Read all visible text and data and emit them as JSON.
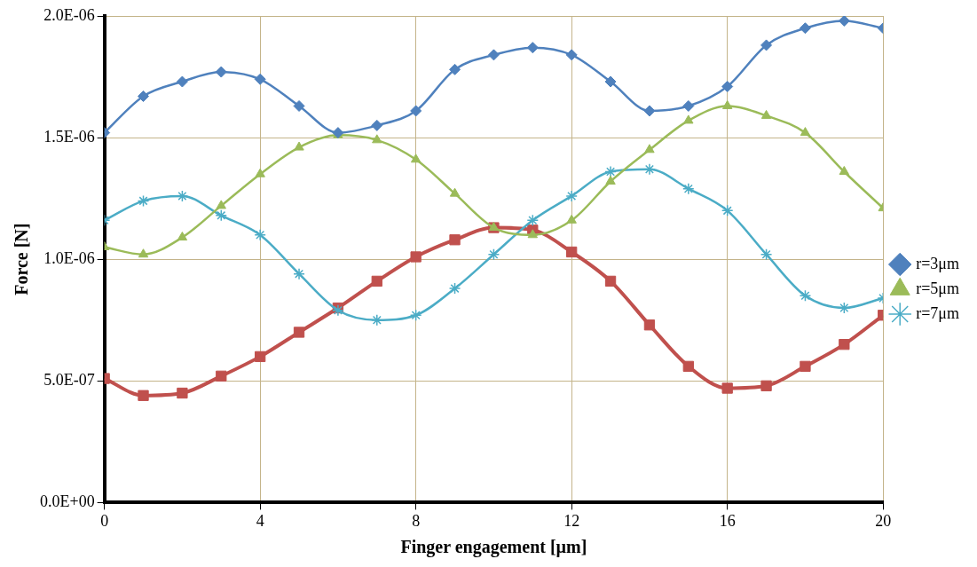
{
  "chart_data": {
    "type": "line",
    "xlabel": "Finger engagement [µm]",
    "ylabel": "Force [N]",
    "x": [
      0,
      1,
      2,
      3,
      4,
      5,
      6,
      7,
      8,
      9,
      10,
      11,
      12,
      13,
      14,
      15,
      16,
      17,
      18,
      19,
      20
    ],
    "xlim": [
      0,
      20
    ],
    "xticks": [
      0,
      4,
      8,
      12,
      16,
      20
    ],
    "ylim": [
      0,
      2e-06
    ],
    "yticks": [
      {
        "value": 0,
        "label": "0.0E+00"
      },
      {
        "value": 5e-07,
        "label": "5.0E-07"
      },
      {
        "value": 1e-06,
        "label": "1.0E-06"
      },
      {
        "value": 1.5e-06,
        "label": "1.5E-06"
      },
      {
        "value": 2e-06,
        "label": "2.0E-06"
      }
    ],
    "grid": true,
    "legend": "right",
    "series": [
      {
        "name": "r=3μm",
        "color": "#4f81bd",
        "marker": "diamond",
        "values": [
          1.52e-06,
          1.67e-06,
          1.73e-06,
          1.77e-06,
          1.74e-06,
          1.63e-06,
          1.52e-06,
          1.55e-06,
          1.61e-06,
          1.78e-06,
          1.84e-06,
          1.87e-06,
          1.84e-06,
          1.73e-06,
          1.61e-06,
          1.63e-06,
          1.71e-06,
          1.88e-06,
          1.95e-06,
          1.98e-06,
          1.95e-06
        ]
      },
      {
        "name": "r=5μm",
        "color": "#9bbb59",
        "marker": "triangle",
        "values": [
          1.05e-06,
          1.02e-06,
          1.09e-06,
          1.22e-06,
          1.35e-06,
          1.46e-06,
          1.51e-06,
          1.49e-06,
          1.41e-06,
          1.27e-06,
          1.13e-06,
          1.1e-06,
          1.16e-06,
          1.32e-06,
          1.45e-06,
          1.57e-06,
          1.63e-06,
          1.59e-06,
          1.52e-06,
          1.36e-06,
          1.21e-06
        ]
      },
      {
        "name": "r=7μm",
        "color": "#4bacc6",
        "marker": "cross",
        "values": [
          1.16e-06,
          1.24e-06,
          1.26e-06,
          1.18e-06,
          1.1e-06,
          9.4e-07,
          7.9e-07,
          7.5e-07,
          7.7e-07,
          8.8e-07,
          1.02e-06,
          1.16e-06,
          1.26e-06,
          1.36e-06,
          1.37e-06,
          1.29e-06,
          1.2e-06,
          1.02e-06,
          8.5e-07,
          8e-07,
          8.4e-07
        ]
      },
      {
        "color": "#c0504d",
        "marker": "square",
        "values": [
          5.1e-07,
          4.4e-07,
          4.5e-07,
          5.2e-07,
          6e-07,
          7e-07,
          8e-07,
          9.1e-07,
          1.01e-06,
          1.08e-06,
          1.13e-06,
          1.12e-06,
          1.03e-06,
          9.1e-07,
          7.3e-07,
          5.6e-07,
          4.7e-07,
          4.8e-07,
          5.6e-07,
          6.5e-07,
          7.7e-07
        ]
      }
    ]
  }
}
